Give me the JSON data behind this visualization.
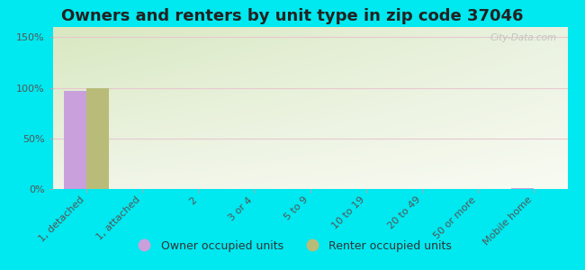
{
  "title": "Owners and renters by unit type in zip code 37046",
  "categories": [
    "1, detached",
    "1, attached",
    "2",
    "3 or 4",
    "5 to 9",
    "10 to 19",
    "20 to 49",
    "50 or more",
    "Mobile home"
  ],
  "owner_values": [
    97,
    0,
    0,
    0,
    0,
    0,
    0,
    0,
    1
  ],
  "renter_values": [
    100,
    0,
    0,
    0,
    0,
    0,
    0,
    0,
    0
  ],
  "owner_color": "#c9a0dc",
  "renter_color": "#b8bc78",
  "background_outer": "#00e8f0",
  "background_plot_topleft": "#d8e8c0",
  "background_plot_topright": "#eaf2e0",
  "background_plot_bottom": "#f5f8ee",
  "grid_color": "#e8c8d0",
  "yticks": [
    0,
    50,
    100,
    150
  ],
  "ytick_labels": [
    "0%",
    "50%",
    "100%",
    "150%"
  ],
  "ylim": [
    0,
    160
  ],
  "bar_width": 0.4,
  "title_fontsize": 13,
  "tick_fontsize": 8,
  "legend_fontsize": 9,
  "watermark_text": "City-Data.com"
}
